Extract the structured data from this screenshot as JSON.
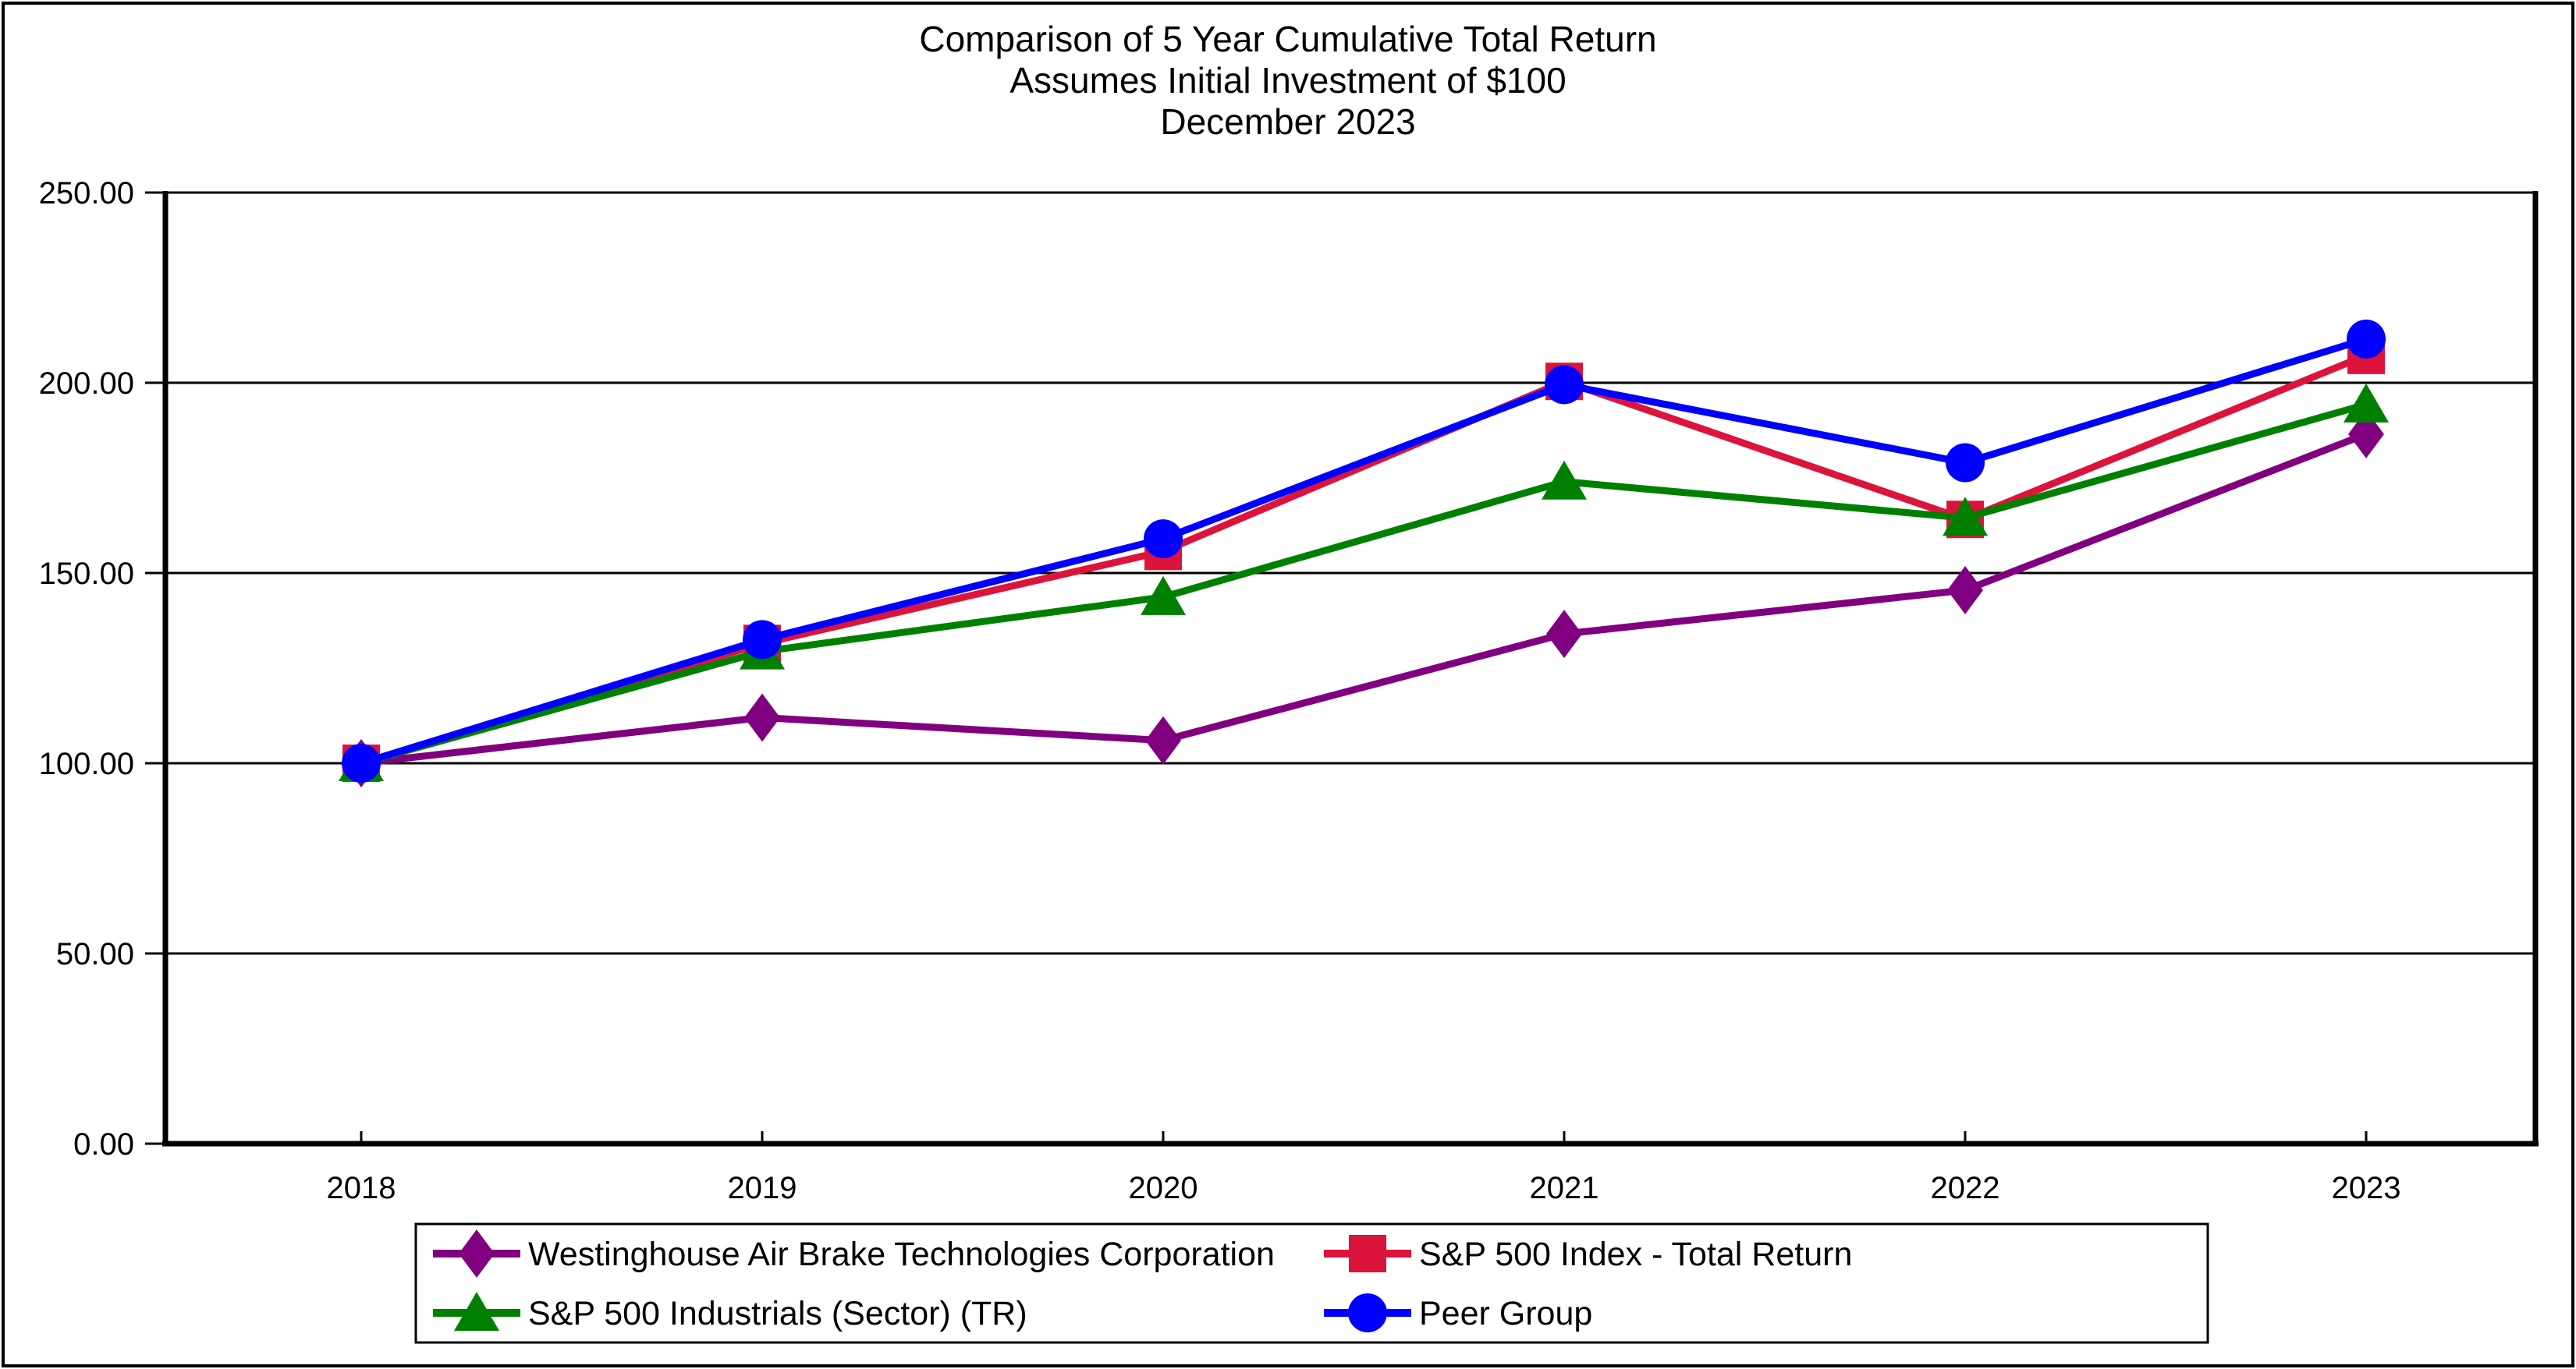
{
  "chart_data": {
    "type": "line",
    "title": "Comparison of 5 Year Cumulative Total Return",
    "title_lines": [
      "Comparison of 5 Year Cumulative Total Return",
      "Assumes Initial Investment of $100",
      "December 2023"
    ],
    "categories": [
      "2018",
      "2019",
      "2020",
      "2021",
      "2022",
      "2023"
    ],
    "series": [
      {
        "name": "Westinghouse Air Brake Technologies Corporation",
        "color": "#800080",
        "marker": "diamond",
        "values": [
          100.0,
          112.0,
          106.0,
          134.0,
          145.5,
          186.5
        ]
      },
      {
        "name": "S&P 500 Index - Total Return",
        "color": "#DC143C",
        "marker": "square",
        "values": [
          100.0,
          131.49,
          155.68,
          200.37,
          164.08,
          207.21
        ]
      },
      {
        "name": "S&P 500 Industrials (Sector) (TR)",
        "color": "#008000",
        "marker": "triangle",
        "values": [
          100.0,
          129.37,
          143.68,
          174.02,
          164.48,
          194.3
        ]
      },
      {
        "name": "Peer Group",
        "color": "#0000FF",
        "marker": "circle",
        "values": [
          100.0,
          132.5,
          159.0,
          199.5,
          179.0,
          211.5
        ]
      }
    ],
    "ylim": [
      0,
      250
    ],
    "y_tick_step": 50,
    "y_tick_labels": [
      "0.00",
      "50.00",
      "100.00",
      "150.00",
      "200.00",
      "250.00"
    ],
    "xlabel": "",
    "ylabel": "",
    "grid": "horizontal",
    "legend_position": "bottom",
    "axis_color": "#000000",
    "background_color": "#FFFFFF"
  }
}
